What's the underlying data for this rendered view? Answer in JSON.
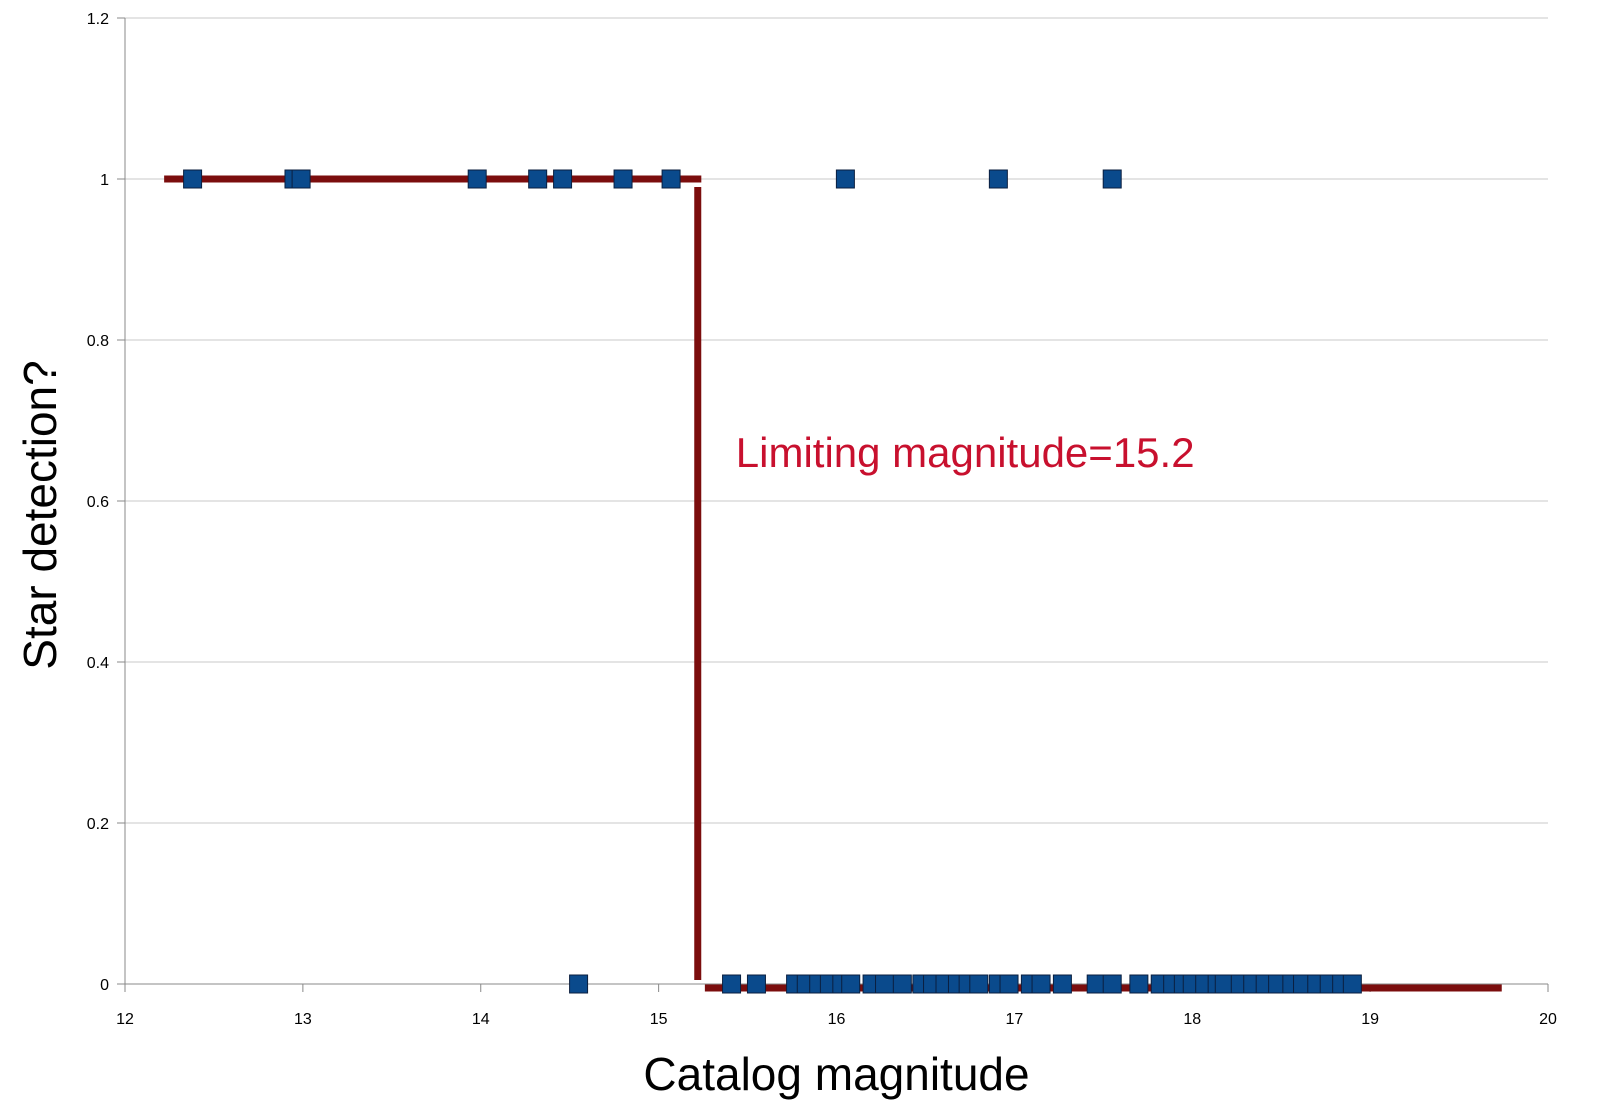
{
  "chart_data": {
    "type": "scatter",
    "xlabel": "Catalog magnitude",
    "ylabel": "Star detection?",
    "xlim": [
      12,
      20
    ],
    "ylim": [
      0,
      1.2
    ],
    "xticks": [
      "12",
      "13",
      "14",
      "15",
      "16",
      "17",
      "18",
      "19",
      "20"
    ],
    "yticks": [
      "0",
      "0.2",
      "0.4",
      "0.6",
      "0.8",
      "1",
      "1.2"
    ],
    "grid": "horizontal",
    "legend": "none",
    "annotation": {
      "text": "Limiting magnitude=15.2",
      "x": 15.4,
      "y": 0.63
    },
    "colors": {
      "marker": "#0a4a8c",
      "marker_edge": "#0b1f3f",
      "fit_line": "#7b0d0d",
      "annotation": "#c8102e",
      "grid": "#c8c8c8"
    },
    "series": [
      {
        "values": [
          [
            12.38,
            1
          ],
          [
            12.95,
            1
          ],
          [
            12.99,
            1
          ],
          [
            13.98,
            1
          ],
          [
            14.32,
            1
          ],
          [
            14.46,
            1
          ],
          [
            14.8,
            1
          ],
          [
            15.07,
            1
          ],
          [
            16.05,
            1
          ],
          [
            16.91,
            1
          ],
          [
            17.55,
            1
          ],
          [
            14.55,
            0
          ],
          [
            15.41,
            0
          ],
          [
            15.55,
            0
          ],
          [
            15.77,
            0
          ],
          [
            15.83,
            0
          ],
          [
            15.9,
            0
          ],
          [
            15.96,
            0
          ],
          [
            16.03,
            0
          ],
          [
            16.08,
            0
          ],
          [
            16.2,
            0
          ],
          [
            16.27,
            0
          ],
          [
            16.37,
            0
          ],
          [
            16.48,
            0
          ],
          [
            16.54,
            0
          ],
          [
            16.61,
            0
          ],
          [
            16.68,
            0
          ],
          [
            16.74,
            0
          ],
          [
            16.8,
            0
          ],
          [
            16.91,
            0
          ],
          [
            16.97,
            0
          ],
          [
            17.09,
            0
          ],
          [
            17.15,
            0
          ],
          [
            17.27,
            0
          ],
          [
            17.46,
            0
          ],
          [
            17.55,
            0
          ],
          [
            17.7,
            0
          ],
          [
            17.82,
            0
          ],
          [
            17.89,
            0
          ],
          [
            17.95,
            0
          ],
          [
            18.0,
            0
          ],
          [
            18.07,
            0
          ],
          [
            18.14,
            0
          ],
          [
            18.18,
            0
          ],
          [
            18.27,
            0
          ],
          [
            18.34,
            0
          ],
          [
            18.41,
            0
          ],
          [
            18.48,
            0
          ],
          [
            18.56,
            0
          ],
          [
            18.62,
            0
          ],
          [
            18.7,
            0
          ],
          [
            18.77,
            0
          ],
          [
            18.84,
            0
          ],
          [
            18.9,
            0
          ]
        ]
      }
    ],
    "fit_line": {
      "segments": [
        {
          "x": [
            12.22,
            15.24
          ],
          "y": [
            1.0,
            1.0
          ]
        },
        {
          "x": [
            15.22,
            15.22
          ],
          "y": [
            0.99,
            0.005
          ]
        },
        {
          "x": [
            15.26,
            19.74
          ],
          "y": [
            -0.005,
            -0.005
          ]
        }
      ]
    }
  }
}
